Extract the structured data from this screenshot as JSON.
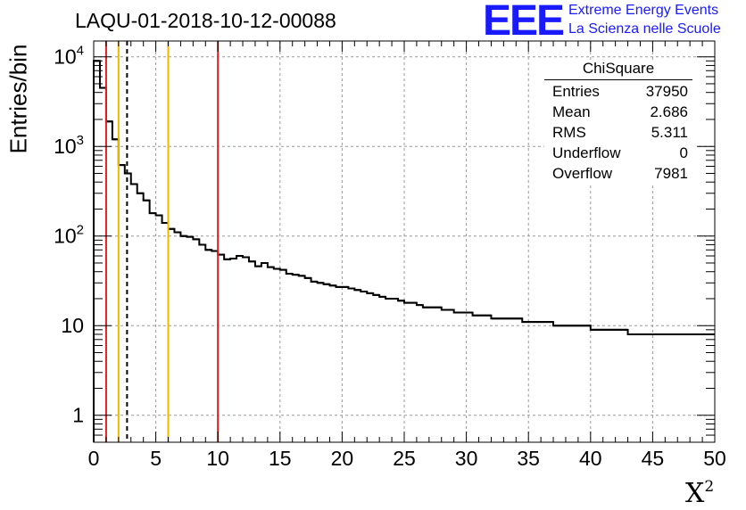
{
  "header": {
    "title": "LAQU-01-2018-10-12-00088",
    "logo_text": "EEE",
    "logo_line1": "Extreme Energy Events",
    "logo_line2": "La Scienza nelle Scuole"
  },
  "stats": {
    "title": "ChiSquare",
    "rows": [
      {
        "key": "Entries",
        "value": "37950"
      },
      {
        "key": "Mean",
        "value": "2.686"
      },
      {
        "key": "RMS",
        "value": "5.311"
      },
      {
        "key": "Underflow",
        "value": "0"
      },
      {
        "key": "Overflow",
        "value": "7981"
      }
    ]
  },
  "colors": {
    "histogram": "#000000",
    "red_line": "#e02020",
    "yellow_line": "#f0b800",
    "grid": "#999999",
    "logo": "#1a1aff"
  },
  "chart_data": {
    "type": "histogram",
    "title": "LAQU-01-2018-10-12-00088",
    "xlabel": "X",
    "xlabel_superscript": "2",
    "ylabel": "Entries/bin",
    "yscale": "log",
    "xlim": [
      0,
      50
    ],
    "ylim": [
      0.5,
      15000
    ],
    "bin_width": 0.5,
    "grid": true,
    "x_ticks": [
      "0",
      "5",
      "10",
      "15",
      "20",
      "25",
      "30",
      "35",
      "40",
      "45",
      "50"
    ],
    "y_ticks": [
      {
        "value": 1,
        "label": "1"
      },
      {
        "value": 10,
        "label": "10"
      },
      {
        "value": 100,
        "label": "10",
        "exp": "2"
      },
      {
        "value": 1000,
        "label": "10",
        "exp": "3"
      },
      {
        "value": 10000,
        "label": "10",
        "exp": "4"
      }
    ],
    "values": [
      9000,
      4500,
      1900,
      1200,
      620,
      500,
      380,
      300,
      250,
      180,
      170,
      140,
      120,
      110,
      100,
      98,
      92,
      80,
      70,
      68,
      62,
      55,
      56,
      60,
      58,
      52,
      46,
      50,
      45,
      43,
      42,
      38,
      37,
      36,
      34,
      31,
      30,
      29,
      28,
      27,
      27,
      26,
      25,
      24,
      23,
      22,
      21,
      20,
      20,
      19,
      18,
      18,
      17,
      16,
      16,
      16,
      15,
      15,
      14,
      14,
      14,
      13,
      13,
      13,
      12,
      12,
      12,
      12,
      12,
      11,
      11,
      11,
      11,
      11,
      10,
      10,
      10,
      10,
      10,
      10,
      9,
      9,
      9,
      9,
      9,
      9,
      8,
      8,
      8,
      8,
      8,
      8,
      8,
      8,
      8,
      8,
      8,
      8,
      8,
      8
    ],
    "vertical_lines": [
      {
        "x": 1.0,
        "color": "red",
        "style": "solid"
      },
      {
        "x": 2.0,
        "color": "yellow",
        "style": "solid"
      },
      {
        "x": 2.686,
        "color": "black",
        "style": "dashed"
      },
      {
        "x": 6.0,
        "color": "yellow",
        "style": "solid"
      },
      {
        "x": 10.0,
        "color": "red",
        "style": "solid"
      }
    ]
  }
}
